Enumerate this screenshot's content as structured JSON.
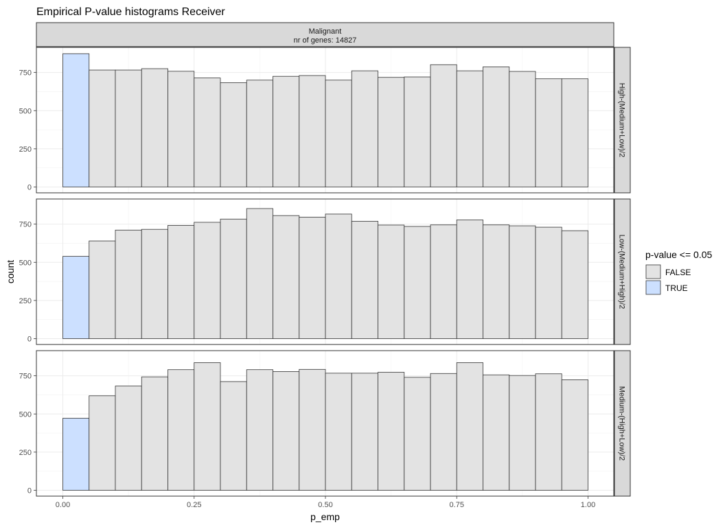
{
  "title": "Empirical P-value histograms Receiver",
  "top_strip": {
    "line1": "Malignant",
    "line2": "nr of genes: 14827"
  },
  "legend": {
    "title": "p-value <= 0.05",
    "items": [
      {
        "label": "FALSE",
        "color": "#e3e3e3"
      },
      {
        "label": "TRUE",
        "color": "#cce0ff"
      }
    ]
  },
  "chart_data": {
    "type": "bar",
    "xlabel": "p_emp",
    "ylabel": "count",
    "xlim": [
      0,
      1
    ],
    "ylim": [
      0,
      875
    ],
    "x_ticks": [
      "0.00",
      "0.25",
      "0.50",
      "0.75",
      "1.00"
    ],
    "y_ticks": [
      "0",
      "250",
      "500",
      "750"
    ],
    "bin_width": 0.05,
    "bin_starts": [
      0.0,
      0.05,
      0.1,
      0.15,
      0.2,
      0.25,
      0.3,
      0.35,
      0.4,
      0.45,
      0.5,
      0.55,
      0.6,
      0.65,
      0.7,
      0.75,
      0.8,
      0.85,
      0.9,
      0.95
    ],
    "fill_true_color": "#cce0ff",
    "fill_false_color": "#e3e3e3",
    "panels": [
      {
        "facet": "High-(Medium+Low)/2",
        "values": [
          873,
          766,
          766,
          775,
          758,
          714,
          683,
          700,
          725,
          730,
          700,
          761,
          718,
          721,
          801,
          761,
          787,
          757,
          709,
          709
        ]
      },
      {
        "facet": "Low-(Medium+High)/2",
        "values": [
          539,
          640,
          711,
          716,
          742,
          762,
          783,
          852,
          806,
          796,
          816,
          769,
          744,
          735,
          745,
          778,
          745,
          739,
          730,
          707
        ]
      },
      {
        "facet": "Medium-(High+Low)/2",
        "values": [
          472,
          619,
          683,
          743,
          790,
          836,
          712,
          790,
          778,
          792,
          767,
          767,
          773,
          740,
          765,
          836,
          756,
          752,
          763,
          724
        ]
      }
    ]
  }
}
